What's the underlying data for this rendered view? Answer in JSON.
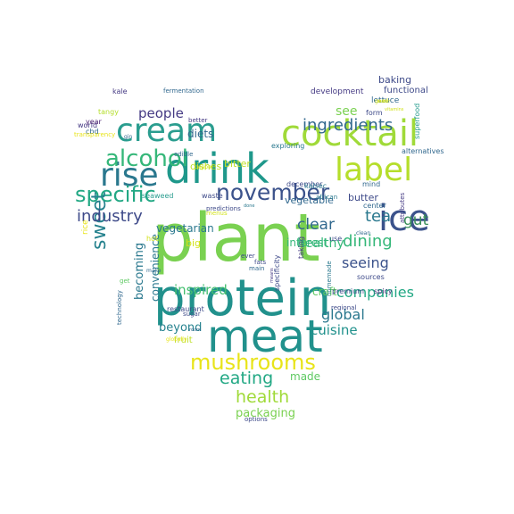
{
  "colors": {
    "teal": "#21918c",
    "green": "#5ec962",
    "lime": "#a0da39",
    "yellow": "#e8e419",
    "navy": "#3b528b",
    "purple": "#472d7b",
    "mint": "#7ad151",
    "seagreen": "#2a9d8f"
  },
  "words": [
    {
      "text": "plant",
      "color": "#7ad151"
    },
    {
      "text": "protein",
      "color": "#21918c"
    },
    {
      "text": "meat",
      "color": "#21918c"
    },
    {
      "text": "drink",
      "color": "#1f988b"
    },
    {
      "text": "cocktail",
      "color": "#a0da39"
    },
    {
      "text": "cream",
      "color": "#2a9d8f"
    },
    {
      "text": "rise",
      "color": "#2a788e"
    },
    {
      "text": "label",
      "color": "#b5de2b"
    },
    {
      "text": "ice",
      "color": "#3b528b"
    },
    {
      "text": "alcohol",
      "color": "#35b779"
    },
    {
      "text": "november",
      "color": "#3b528b"
    },
    {
      "text": "specific",
      "color": "#22a884"
    },
    {
      "text": "sweet",
      "color": "#26828e"
    },
    {
      "text": "mushrooms",
      "color": "#e8e419"
    },
    {
      "text": "ingredients",
      "color": "#31688e"
    },
    {
      "text": "industry",
      "color": "#3e4a89"
    },
    {
      "text": "eating",
      "color": "#22a884"
    },
    {
      "text": "health",
      "color": "#a0da39"
    },
    {
      "text": "tea",
      "color": "#2a788e"
    },
    {
      "text": "gut",
      "color": "#3b8f5a"
    },
    {
      "text": "dining",
      "color": "#35b779"
    },
    {
      "text": "global",
      "color": "#2a788e"
    },
    {
      "text": "companies",
      "color": "#22a884"
    },
    {
      "text": "clear",
      "color": "#31688e"
    },
    {
      "text": "seeing",
      "color": "#3b528b"
    },
    {
      "text": "people",
      "color": "#443983"
    },
    {
      "text": "inspired",
      "color": "#44bf70"
    },
    {
      "text": "cuisine",
      "color": "#21918c"
    },
    {
      "text": "packaging",
      "color": "#7ad151"
    },
    {
      "text": "healthy",
      "color": "#35b779"
    },
    {
      "text": "see",
      "color": "#7ad151"
    },
    {
      "text": "diets",
      "color": "#31688e"
    },
    {
      "text": "vegetarian",
      "color": "#2a788e"
    },
    {
      "text": "beyond",
      "color": "#26828e"
    },
    {
      "text": "convenience",
      "color": "#2a788e"
    },
    {
      "text": "becoming",
      "color": "#2a788e"
    },
    {
      "text": "interest",
      "color": "#35b779"
    },
    {
      "text": "craft",
      "color": "#5ec962"
    },
    {
      "text": "made",
      "color": "#5ec962"
    },
    {
      "text": "fruit",
      "color": "#bddf26"
    },
    {
      "text": "big",
      "color": "#d2e21b"
    },
    {
      "text": "vegetable",
      "color": "#31688e"
    },
    {
      "text": "butter",
      "color": "#3e4a89"
    },
    {
      "text": "dishes",
      "color": "#bddf26"
    },
    {
      "text": "bitter",
      "color": "#bddf26"
    },
    {
      "text": "seaweed",
      "color": "#2a9d8f"
    },
    {
      "text": "kale",
      "color": "#443983"
    },
    {
      "text": "fermentation",
      "color": "#31688e"
    },
    {
      "text": "world",
      "color": "#443983"
    },
    {
      "text": "tangy",
      "color": "#b5de2b"
    },
    {
      "text": "cbd",
      "color": "#31688e"
    },
    {
      "text": "year",
      "color": "#481f70"
    },
    {
      "text": "better",
      "color": "#443983"
    },
    {
      "text": "edible",
      "color": "#31688e"
    },
    {
      "text": "gin",
      "color": "#31688e"
    },
    {
      "text": "baking",
      "color": "#3e4a89"
    },
    {
      "text": "functional",
      "color": "#3e4a89"
    },
    {
      "text": "development",
      "color": "#443983"
    },
    {
      "text": "lettuce",
      "color": "#31688e"
    },
    {
      "text": "form",
      "color": "#3e4a89"
    },
    {
      "text": "superfood",
      "color": "#2a9d8f"
    },
    {
      "text": "alternatives",
      "color": "#31688e"
    },
    {
      "text": "exploring",
      "color": "#2a788e"
    },
    {
      "text": "december",
      "color": "#3e4a89"
    },
    {
      "text": "kalsec",
      "color": "#2a788e"
    },
    {
      "text": "mind",
      "color": "#31688e"
    },
    {
      "text": "african",
      "color": "#2a788e"
    },
    {
      "text": "center",
      "color": "#31688e"
    },
    {
      "text": "waste",
      "color": "#3e4a89"
    },
    {
      "text": "predictions",
      "color": "#3e4a89"
    },
    {
      "text": "done",
      "color": "#2a788e"
    },
    {
      "text": "menus",
      "color": "#d2e21b"
    },
    {
      "text": "pepper",
      "color": "#d2e21b"
    },
    {
      "text": "rice",
      "color": "#e8e419"
    },
    {
      "text": "hot",
      "color": "#d2e21b"
    },
    {
      "text": "fats",
      "color": "#3e4a89"
    },
    {
      "text": "ever",
      "color": "#3e4a89"
    },
    {
      "text": "specificity",
      "color": "#3e4a89"
    },
    {
      "text": "main",
      "color": "#31688e"
    },
    {
      "text": "taking",
      "color": "#443983"
    },
    {
      "text": "use",
      "color": "#3e4a89"
    },
    {
      "text": "clean",
      "color": "#31688e"
    },
    {
      "text": "make",
      "color": "#31688e"
    },
    {
      "text": "get",
      "color": "#5ec962"
    },
    {
      "text": "technology",
      "color": "#31688e"
    },
    {
      "text": "restaurant",
      "color": "#3e4a89"
    },
    {
      "text": "globally",
      "color": "#e8e419"
    },
    {
      "text": "sugar",
      "color": "#3e4a89"
    },
    {
      "text": "room",
      "color": "#31688e"
    },
    {
      "text": "means",
      "color": "#443983"
    },
    {
      "text": "homemade",
      "color": "#2a788e"
    },
    {
      "text": "sources",
      "color": "#3e4a89"
    },
    {
      "text": "premium",
      "color": "#3e4a89"
    },
    {
      "text": "regional",
      "color": "#3e4a89"
    },
    {
      "text": "spicy",
      "color": "#472d7b"
    },
    {
      "text": "attributes",
      "color": "#443983"
    },
    {
      "text": "good",
      "color": "#d2e21b"
    },
    {
      "text": "options",
      "color": "#3e4a89"
    },
    {
      "text": "transparency",
      "color": "#e8e419"
    },
    {
      "text": "water",
      "color": "#d2e21b"
    },
    {
      "text": "vitamins",
      "color": "#d2e21b"
    }
  ]
}
